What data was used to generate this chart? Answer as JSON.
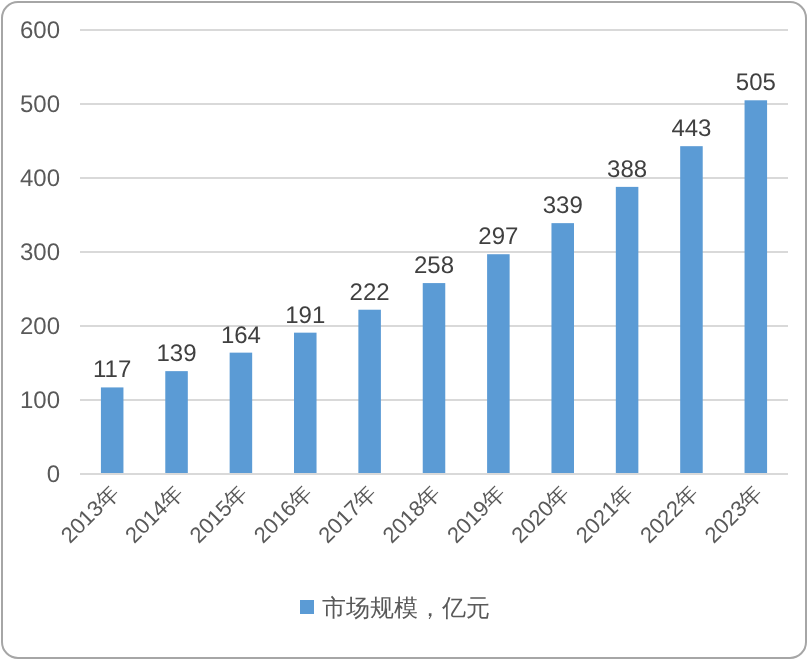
{
  "chart_data": {
    "type": "bar",
    "categories": [
      "2013年",
      "2014年",
      "2015年",
      "2016年",
      "2017年",
      "2018年",
      "2019年",
      "2020年",
      "2021年",
      "2022年",
      "2023年"
    ],
    "series": [
      {
        "name": "市场规模，亿元",
        "color": "#5b9bd5",
        "values": [
          117,
          139,
          164,
          191,
          222,
          258,
          297,
          339,
          388,
          443,
          505
        ]
      }
    ],
    "ylim": [
      0,
      600
    ],
    "yticks": [
      0,
      100,
      200,
      300,
      400,
      500,
      600
    ],
    "grid": "y",
    "legend": "bottom",
    "data_labels": true
  }
}
